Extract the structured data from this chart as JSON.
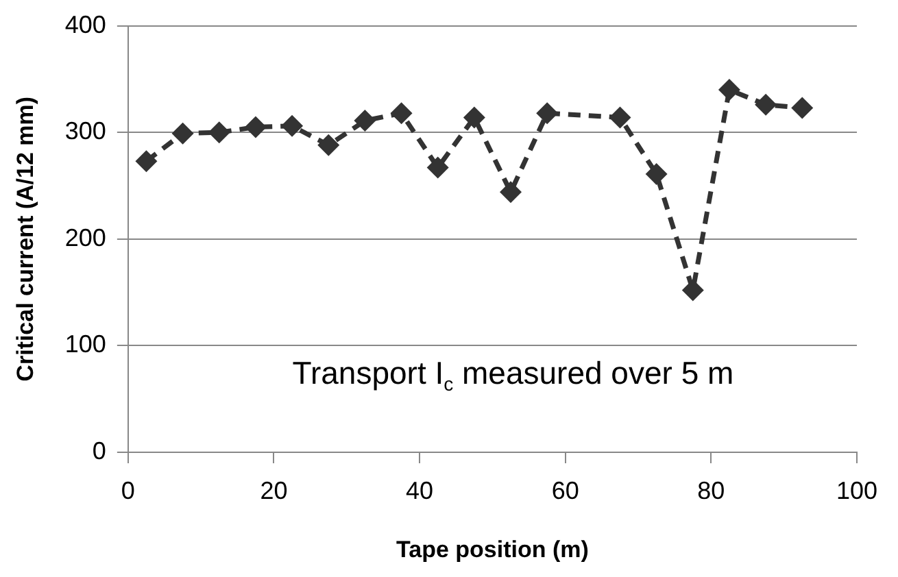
{
  "chart_data": {
    "type": "line",
    "xlabel": "Tape position (m)",
    "ylabel": "Critical current (A/12 mm)",
    "x": [
      2.5,
      7.5,
      12.5,
      17.5,
      22.5,
      27.5,
      32.5,
      37.5,
      42.5,
      47.5,
      52.5,
      57.5,
      67.5,
      72.5,
      77.5,
      82.5,
      87.5,
      92.5
    ],
    "series": [
      {
        "color": "#333333",
        "values": [
          273,
          299,
          300,
          305,
          306,
          288,
          311,
          318,
          267,
          314,
          244,
          318,
          314,
          261,
          152,
          340,
          326,
          323
        ]
      }
    ],
    "xlim": [
      0,
      100
    ],
    "xticks": [
      0,
      20,
      40,
      60,
      80,
      100
    ],
    "ylim": [
      0,
      400
    ],
    "yticks": [
      0,
      100,
      200,
      300,
      400
    ],
    "grid": "y",
    "legend": false,
    "marker": "diamond",
    "line_style": "dashed",
    "annotations": [
      "Transport I$_{c}$ measured over 5 m"
    ]
  }
}
